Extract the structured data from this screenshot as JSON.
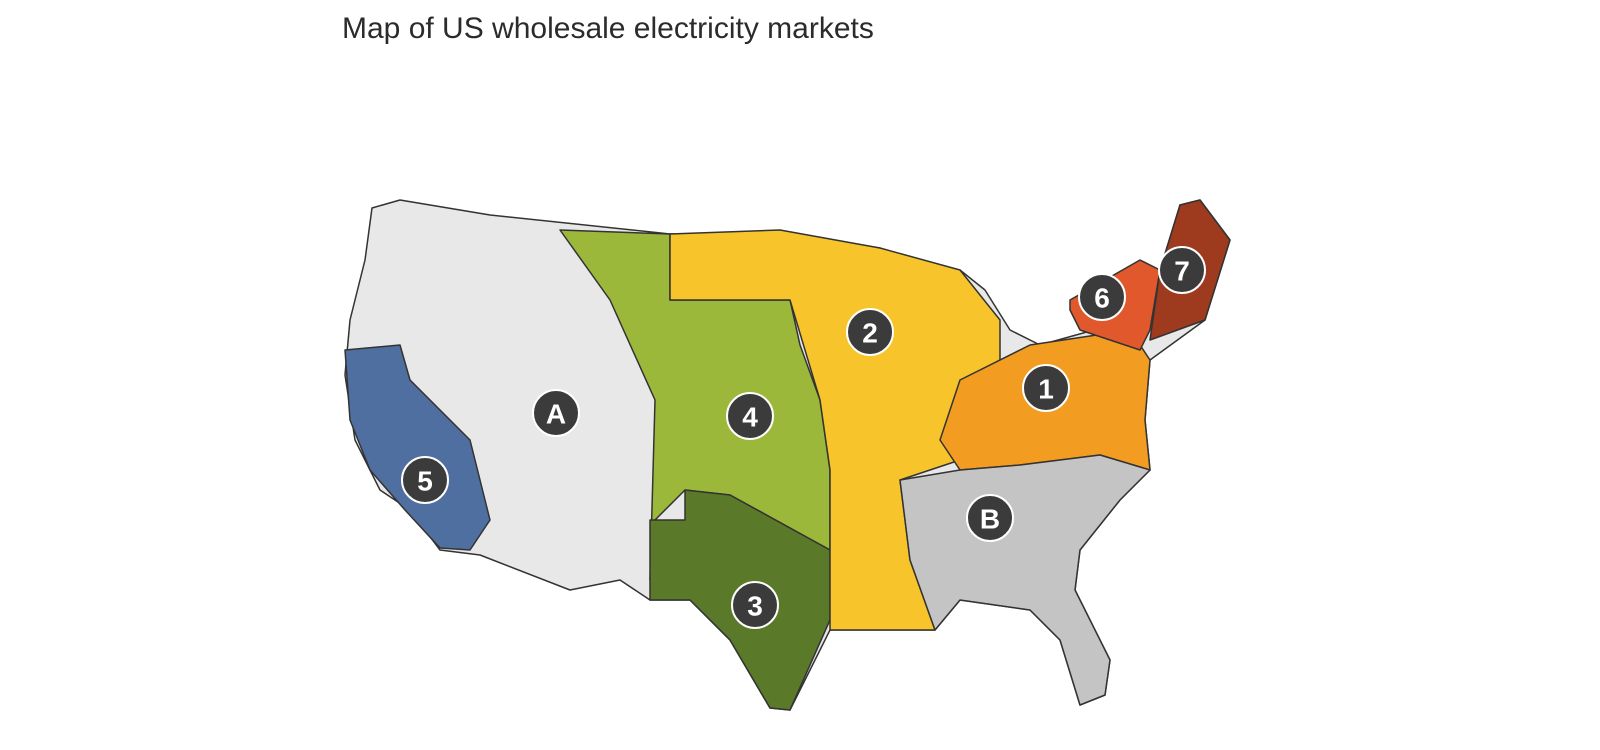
{
  "title": "Map of US wholesale electricity markets",
  "markers": [
    {
      "label": "A"
    },
    {
      "label": "B"
    },
    {
      "label": "1"
    },
    {
      "label": "2"
    },
    {
      "label": "3"
    },
    {
      "label": "4"
    },
    {
      "label": "5"
    },
    {
      "label": "6"
    },
    {
      "label": "7"
    }
  ]
}
